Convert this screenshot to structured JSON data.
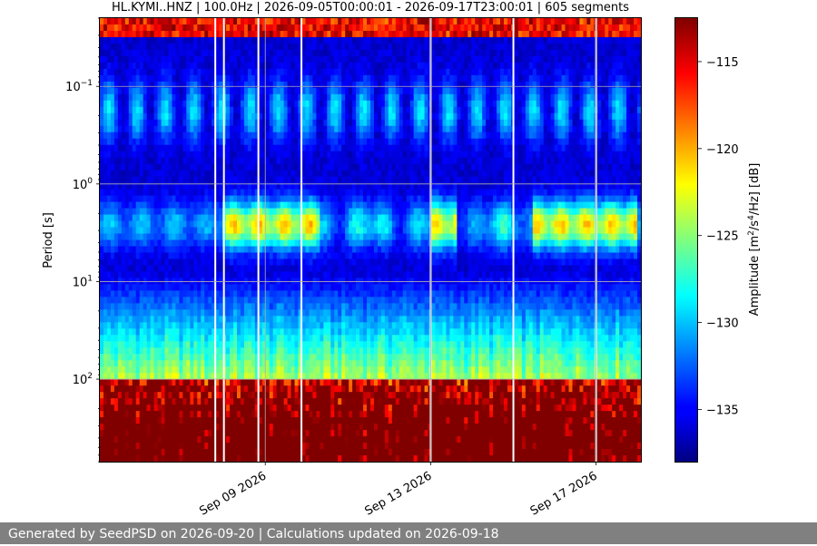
{
  "chart_data": {
    "type": "heatmap",
    "title": "HL.KYMI..HNZ | 100.0Hz | 2026-09-05T00:00:01 - 2026-09-17T23:00:01 | 605 segments",
    "ylabel": "Period [s]",
    "xlabel": "",
    "y_scale": "log",
    "y_reversed": true,
    "ylim": [
      0.02,
      700
    ],
    "y_ticks": [
      {
        "value": 0.1,
        "base": "10",
        "exp": "−1"
      },
      {
        "value": 1,
        "base": "10",
        "exp": "0"
      },
      {
        "value": 10,
        "base": "10",
        "exp": "1"
      },
      {
        "value": 100,
        "base": "10",
        "exp": "2"
      }
    ],
    "xlim": [
      "2026-09-05T00:00:01",
      "2026-09-18T02:00:00"
    ],
    "x_ticks": [
      {
        "date": "2026-09-09",
        "label": "Sep 09 2026"
      },
      {
        "date": "2026-09-13",
        "label": "Sep 13 2026"
      },
      {
        "date": "2026-09-17",
        "label": "Sep 17 2026"
      }
    ],
    "grid": true,
    "colormap": "jet",
    "colorbar": {
      "label_pre": "Amplitude [m",
      "sup1": "2",
      "mid": "/s",
      "sup2": "4",
      "label_post": "/Hz] [dB]",
      "range": [
        -138,
        -112.5
      ],
      "ticks": [
        -115,
        -120,
        -125,
        -130,
        -135
      ]
    },
    "data_gaps": [
      "2026-09-07T19:00:00",
      "2026-09-08T00:00:00",
      "2026-09-08T20:00:00",
      "2026-09-09T21:00:00",
      "2026-09-13T00:00:00",
      "2026-09-15T00:00:00",
      "2026-09-17T00:00:00"
    ],
    "features": {
      "microseism_period_s": 2.5,
      "microseism_strong_days": [
        {
          "start": "2026-09-08T00:00:00",
          "end": "2026-09-10T08:00:00"
        },
        {
          "start": "2026-09-13T00:00:00",
          "end": "2026-09-13T16:00:00"
        },
        {
          "start": "2026-09-15T12:00:00",
          "end": "2026-09-18T00:00:00"
        }
      ],
      "high_noise_period_max_s": 0.03,
      "long_period_noise_min_s": 100
    }
  },
  "footer": {
    "text": "Generated by SeedPSD on 2026-09-20 | Calculations updated on 2026-09-18"
  }
}
